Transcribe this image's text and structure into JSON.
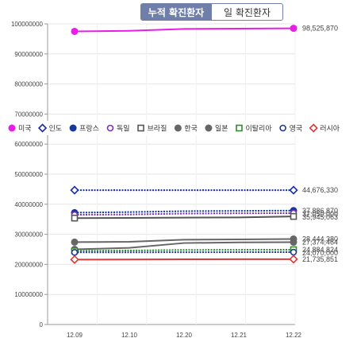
{
  "tabs": [
    {
      "label": "누적 확진환자",
      "active": true
    },
    {
      "label": "일 확진환자",
      "active": false
    }
  ],
  "chart_data": {
    "type": "line",
    "x": [
      "12.09",
      "12.10",
      "12.20",
      "12.21",
      "12.22"
    ],
    "ylim": [
      0,
      100000000
    ],
    "yticks": [
      0,
      10000000,
      20000000,
      30000000,
      40000000,
      50000000,
      60000000,
      70000000,
      80000000,
      90000000,
      100000000
    ],
    "ytick_labels": [
      "0",
      "10000000",
      "20000000",
      "30000000",
      "40000000",
      "50000000",
      "60000000",
      "70000000",
      "80000000",
      "90000000",
      "100000000"
    ],
    "grid": true,
    "legend_position": "middle",
    "series": [
      {
        "name": "미국",
        "color": "#e81ee8",
        "marker": "filled-circle",
        "dotted": false,
        "values": [
          97500000,
          97700000,
          98300000,
          98400000,
          98525870
        ],
        "end_label": "98,525,870"
      },
      {
        "name": "인도",
        "color": "#1c2fa6",
        "marker": "open-diamond",
        "dotted": true,
        "values": [
          44676000,
          44676100,
          44676200,
          44676300,
          44676330
        ],
        "end_label": "44,676,330"
      },
      {
        "name": "프랑스",
        "color": "#17389c",
        "marker": "filled-circle",
        "dotted": true,
        "values": [
          37200000,
          37400000,
          37700000,
          37800000,
          37886870
        ],
        "end_label": "37,886,870"
      },
      {
        "name": "독일",
        "color": "#7e2fb8",
        "marker": "open-circle",
        "dotted": true,
        "values": [
          36500000,
          36600000,
          36900000,
          37000000,
          37050000
        ],
        "end_label": "37,050,000"
      },
      {
        "name": "브라질",
        "color": "#555555",
        "marker": "open-square",
        "dotted": false,
        "values": [
          35400000,
          35450000,
          35550000,
          35600000,
          35945063
        ],
        "end_label": "35,945,063"
      },
      {
        "name": "한국",
        "color": "#666666",
        "marker": "filled-circle",
        "dotted": false,
        "values": [
          27400000,
          27500000,
          28200000,
          28300000,
          28444380
        ],
        "end_label": "28,444,380"
      },
      {
        "name": "일본",
        "color": "#666666",
        "marker": "filled-circle",
        "dotted": false,
        "values": [
          25000000,
          25500000,
          27100000,
          27300000,
          27374464
        ],
        "end_label": "27,374,464"
      },
      {
        "name": "이탈리아",
        "color": "#2e8b2e",
        "marker": "open-square",
        "dotted": true,
        "values": [
          24500000,
          24600000,
          24800000,
          24850000,
          24884824
        ],
        "end_label": "24,884,824"
      },
      {
        "name": "영국",
        "color": "#1d3a8c",
        "marker": "open-circle",
        "dotted": true,
        "values": [
          24000000,
          24000000,
          24050000,
          24060000,
          24070000
        ],
        "end_label": "24,070,000"
      },
      {
        "name": "러시아",
        "color": "#d93a3a",
        "marker": "open-diamond",
        "dotted": false,
        "values": [
          21600000,
          21620000,
          21700000,
          21720000,
          21735851
        ],
        "end_label": "21,735,851"
      }
    ]
  }
}
